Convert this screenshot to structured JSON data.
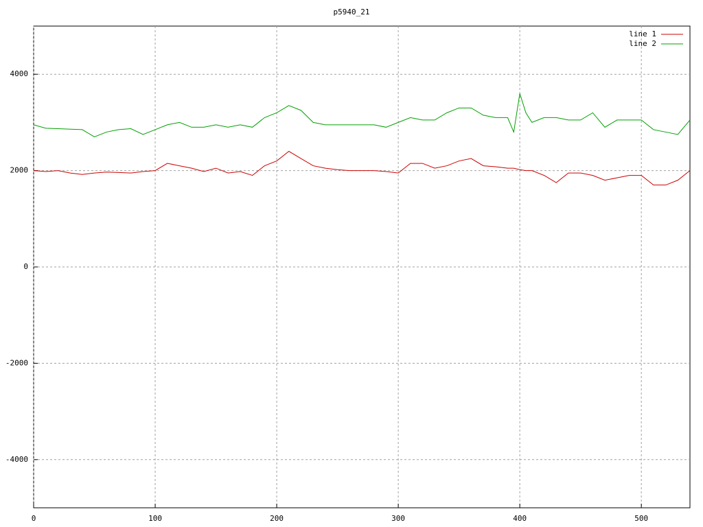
{
  "chart_data": {
    "type": "line",
    "title": "p5940_21",
    "x": [
      0,
      10,
      20,
      30,
      40,
      50,
      60,
      70,
      80,
      90,
      100,
      110,
      120,
      130,
      140,
      150,
      160,
      170,
      180,
      190,
      200,
      210,
      220,
      230,
      240,
      250,
      260,
      270,
      280,
      290,
      300,
      310,
      320,
      330,
      340,
      350,
      360,
      370,
      380,
      390,
      395,
      400,
      405,
      410,
      420,
      430,
      440,
      450,
      460,
      470,
      480,
      490,
      500,
      510,
      520,
      530,
      540
    ],
    "series": [
      {
        "name": "line 1",
        "color": "#cc0000",
        "values": [
          2000,
          1980,
          2000,
          1950,
          1920,
          1950,
          1970,
          1960,
          1950,
          1980,
          2000,
          2150,
          2100,
          2050,
          1980,
          2050,
          1950,
          1980,
          1900,
          2100,
          2200,
          2400,
          2250,
          2100,
          2050,
          2020,
          2000,
          2000,
          2000,
          1980,
          1950,
          2150,
          2150,
          2050,
          2100,
          2200,
          2250,
          2100,
          2080,
          2050,
          2050,
          2020,
          2000,
          2000,
          1900,
          1750,
          1950,
          1950,
          1900,
          1800,
          1850,
          1900,
          1900,
          1700,
          1700,
          1800,
          2000
        ]
      },
      {
        "name": "line 2",
        "color": "#00a000",
        "values": [
          2950,
          2880,
          2870,
          2860,
          2850,
          2700,
          2800,
          2850,
          2870,
          2750,
          2850,
          2950,
          3000,
          2900,
          2900,
          2950,
          2900,
          2950,
          2900,
          3100,
          3200,
          3350,
          3250,
          3000,
          2950,
          2950,
          2950,
          2950,
          2950,
          2900,
          3000,
          3100,
          3050,
          3050,
          3200,
          3300,
          3300,
          3150,
          3100,
          3100,
          2800,
          3600,
          3200,
          3000,
          3100,
          3100,
          3050,
          3050,
          3200,
          2900,
          3050,
          3050,
          3050,
          2850,
          2800,
          2750,
          3050
        ]
      }
    ],
    "xlim": [
      0,
      540
    ],
    "ylim": [
      -5000,
      5000
    ],
    "xticks": [
      0,
      100,
      200,
      300,
      400,
      500
    ],
    "yticks": [
      -4000,
      -2000,
      0,
      2000,
      4000
    ],
    "grid": true
  }
}
